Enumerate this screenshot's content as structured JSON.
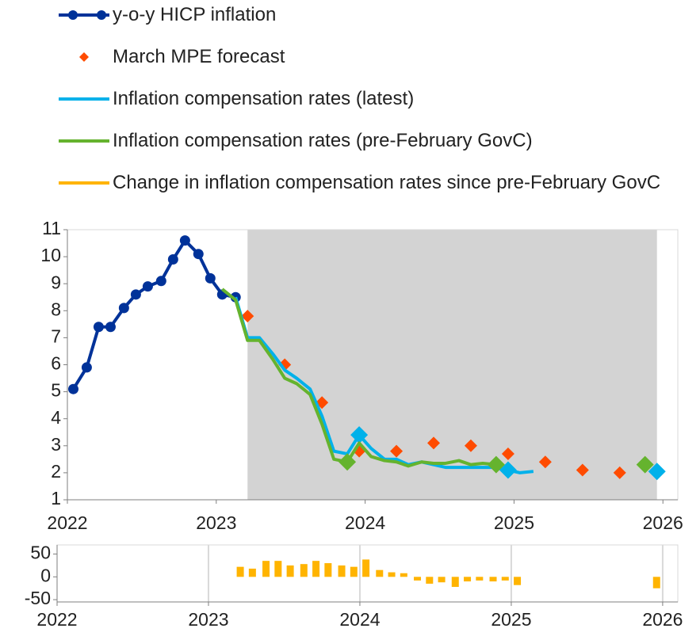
{
  "chart_data": [
    {
      "type": "line",
      "xlim": [
        2022,
        2026.1
      ],
      "xticks": [
        2022,
        2023,
        2024,
        2025,
        2026
      ],
      "ylim": [
        1,
        11
      ],
      "yticks": [
        1,
        2,
        3,
        4,
        5,
        6,
        7,
        8,
        9,
        10,
        11
      ],
      "shaded_xlim": [
        2023.21,
        2025.96
      ],
      "series": [
        {
          "name": "y-o-y HICP inflation",
          "color": "#003299",
          "type": "line",
          "marker": "circle",
          "x": [
            2022.04,
            2022.13,
            2022.21,
            2022.29,
            2022.38,
            2022.46,
            2022.54,
            2022.63,
            2022.71,
            2022.79,
            2022.88,
            2022.96,
            2023.04,
            2023.13
          ],
          "values": [
            5.1,
            5.9,
            7.4,
            7.4,
            8.1,
            8.6,
            8.9,
            9.1,
            9.9,
            10.6,
            10.1,
            9.2,
            8.6,
            8.5
          ]
        },
        {
          "name": "March MPE forecast",
          "color": "#ff4b00",
          "type": "scatter",
          "x": [
            2023.21,
            2023.46,
            2023.71,
            2023.96,
            2024.21,
            2024.46,
            2024.71,
            2024.96,
            2025.21,
            2025.46,
            2025.71,
            2025.96
          ],
          "values": [
            7.8,
            6.0,
            4.6,
            2.8,
            2.8,
            3.1,
            3.0,
            2.7,
            2.4,
            2.1,
            2.0,
            2.0
          ]
        },
        {
          "name": "Inflation compensation rates (latest)",
          "color": "#00b1ea",
          "type": "line",
          "x": [
            2023.13,
            2023.21,
            2023.29,
            2023.38,
            2023.46,
            2023.54,
            2023.63,
            2023.71,
            2023.79,
            2023.88,
            2023.96,
            2024.04,
            2024.13,
            2024.21,
            2024.29,
            2024.38,
            2024.46,
            2024.54,
            2024.63,
            2024.71,
            2024.79,
            2024.88,
            2024.96,
            2025.04,
            2025.13,
            2025.21,
            2025.96
          ],
          "values": [
            8.5,
            7.0,
            7.0,
            6.4,
            5.8,
            5.5,
            5.1,
            4.1,
            2.8,
            2.7,
            3.4,
            2.9,
            2.5,
            2.5,
            2.3,
            2.4,
            2.3,
            2.2,
            2.2,
            2.2,
            2.2,
            2.2,
            2.1,
            2.0,
            2.05,
            null,
            2.05
          ],
          "marker_x": [
            2023.96,
            2024.96,
            2025.96
          ]
        },
        {
          "name": "Inflation compensation rates (pre-February GovC)",
          "color": "#65b32e",
          "type": "line",
          "x": [
            2023.04,
            2023.13,
            2023.21,
            2023.29,
            2023.38,
            2023.46,
            2023.54,
            2023.63,
            2023.71,
            2023.79,
            2023.88,
            2023.96,
            2024.04,
            2024.13,
            2024.21,
            2024.29,
            2024.38,
            2024.46,
            2024.54,
            2024.63,
            2024.71,
            2024.79,
            2024.88,
            2024.96,
            2025.88
          ],
          "values": [
            8.8,
            8.4,
            6.9,
            6.9,
            6.2,
            5.5,
            5.3,
            4.9,
            3.8,
            2.5,
            2.4,
            3.1,
            2.6,
            2.45,
            2.4,
            2.25,
            2.4,
            2.35,
            2.35,
            2.45,
            2.3,
            2.35,
            2.3,
            null,
            2.3
          ],
          "marker_x": [
            2023.88,
            2024.88,
            2025.88
          ]
        }
      ]
    },
    {
      "type": "bar",
      "xlim": [
        2022,
        2026.1
      ],
      "xticks": [
        2022,
        2023,
        2024,
        2025,
        2026
      ],
      "ylim": [
        -55,
        70
      ],
      "yticks": [
        -50,
        0,
        50
      ],
      "grid": true,
      "series": [
        {
          "name": "Change in inflation compensation rates since pre-February GovC",
          "color": "#ffb400",
          "x": [
            2023.21,
            2023.29,
            2023.38,
            2023.46,
            2023.54,
            2023.63,
            2023.71,
            2023.79,
            2023.88,
            2023.96,
            2024.04,
            2024.13,
            2024.21,
            2024.29,
            2024.38,
            2024.46,
            2024.54,
            2024.63,
            2024.71,
            2024.79,
            2024.88,
            2024.96,
            2025.04,
            2025.96
          ],
          "values": [
            22,
            18,
            35,
            35,
            25,
            28,
            35,
            30,
            25,
            22,
            38,
            15,
            10,
            8,
            -8,
            -15,
            -12,
            -22,
            -10,
            -8,
            -10,
            -8,
            -18,
            -25
          ]
        }
      ]
    }
  ]
}
